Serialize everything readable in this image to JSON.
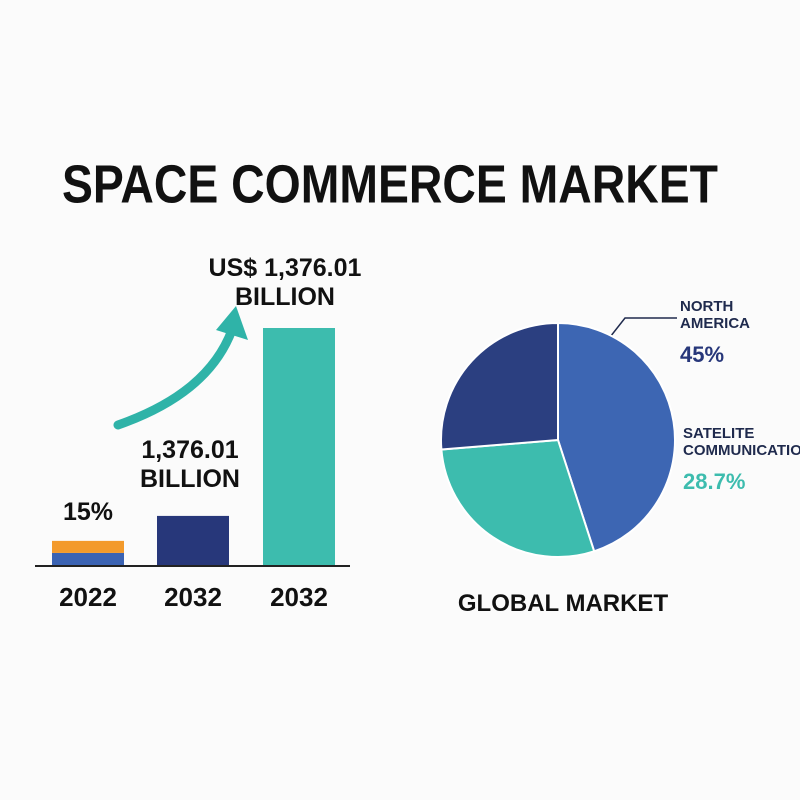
{
  "title": "SPACE COMMERCE MARKET",
  "chart_data": [
    {
      "type": "bar",
      "categories": [
        "2022",
        "2032",
        "2032"
      ],
      "series": [
        {
          "colors": [
            "#3b63b3",
            "#27377a",
            "#3dbcae"
          ],
          "values": [
            70,
            285,
            1376.01
          ]
        },
        {
          "color": "#f39a2b",
          "values": [
            70,
            null,
            null
          ]
        }
      ],
      "annotations": [
        "15%",
        "1,376.01\nBILLION",
        "US$ 1,376.01\nBILLION"
      ]
    },
    {
      "type": "pie",
      "title": "GLOBAL MARKET",
      "categories": [
        "NORTH AMERICA",
        "SATELITE COMMUNICATION",
        null
      ],
      "values": [
        45,
        28.7,
        26.3
      ],
      "value_labels": [
        "45%",
        "28.7%",
        null
      ],
      "colors": [
        "#3d66b3",
        "#3dbcae",
        "#2b3f80"
      ]
    }
  ]
}
